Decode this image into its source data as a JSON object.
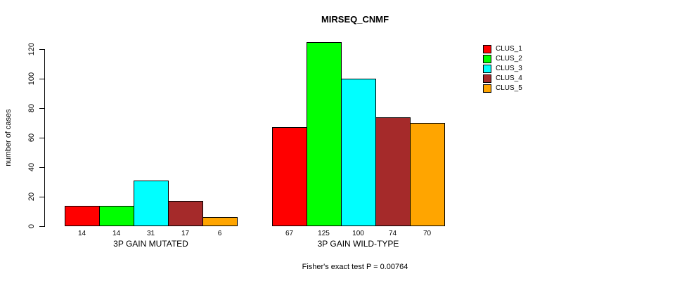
{
  "chart_data": {
    "type": "bar",
    "title": "MIRSEQ_CNMF",
    "ylabel": "number of cases",
    "xlabel": "",
    "ylim": [
      0,
      125
    ],
    "yticks": [
      0,
      20,
      40,
      60,
      80,
      100,
      120
    ],
    "grid": false,
    "legend_position": "right",
    "bar_value_labels_shown": true,
    "series": [
      {
        "name": "CLUS_1",
        "color": "#FF0000"
      },
      {
        "name": "CLUS_2",
        "color": "#00FF00"
      },
      {
        "name": "CLUS_3",
        "color": "#00FFFF"
      },
      {
        "name": "CLUS_4",
        "color": "#A52A2A"
      },
      {
        "name": "CLUS_5",
        "color": "#FFA500"
      }
    ],
    "groups": [
      {
        "label": "3P GAIN MUTATED",
        "values": [
          14,
          14,
          31,
          17,
          6
        ]
      },
      {
        "label": "3P GAIN WILD-TYPE",
        "values": [
          67,
          125,
          100,
          74,
          70
        ]
      }
    ],
    "annotation": "Fisher's exact test P = 0.00764"
  },
  "colors": {
    "background": "#FFFFFF",
    "axis": "#000000",
    "text": "#000000"
  }
}
